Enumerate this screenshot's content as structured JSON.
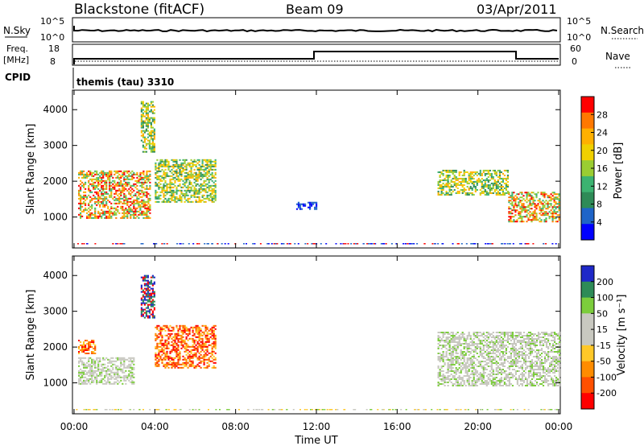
{
  "header": {
    "station": "Blackstone (fitACF)",
    "beam": "Beam 09",
    "date": "03/Apr/2011"
  },
  "params": {
    "nsky_label": "N.Sky",
    "nsearch_label": "N.Search",
    "freq_label_line1": "Freq.",
    "freq_label_line2": "[MHz]",
    "nave_label": "Nave",
    "cpid_label": "CPID",
    "nsky_ticks": [
      "10^5",
      "10^0"
    ],
    "nsearch_ticks": [
      "10^5",
      "10^0"
    ],
    "freq_ticks": [
      "18",
      "8"
    ],
    "nave_ticks": [
      "60",
      "0"
    ],
    "cpid_text": "themis (tau) 3310"
  },
  "chart_data": [
    {
      "type": "heatmap",
      "panel": "power",
      "ylabel": "Slant Range [km]",
      "xlabel": "",
      "x_tick_labels": [
        "00:00",
        "04:00",
        "08:00",
        "12:00",
        "16:00",
        "20:00",
        "00:00"
      ],
      "x_range_hours": [
        0,
        24
      ],
      "ylim": [
        180,
        4500
      ],
      "y_ticks": [
        1000,
        2000,
        3000,
        4000
      ],
      "colorbar": {
        "label": "Power [dB]",
        "ticks": [
          "28",
          "24",
          "20",
          "16",
          "12",
          "8",
          "4"
        ],
        "colors": [
          "#ff0000",
          "#ff7800",
          "#ffb000",
          "#f0d000",
          "#9acd32",
          "#3cb371",
          "#2e8b57",
          "#1e64c8",
          "#0000ff"
        ]
      },
      "echo_regions": [
        {
          "t0": 0.2,
          "t1": 3.8,
          "r0": 950,
          "r1": 2300,
          "level": "high"
        },
        {
          "t0": 3.3,
          "t1": 4.0,
          "r0": 2800,
          "r1": 4200,
          "level": "mid"
        },
        {
          "t0": 4.0,
          "t1": 7.0,
          "r0": 1400,
          "r1": 2600,
          "level": "mid"
        },
        {
          "t0": 11.0,
          "t1": 12.0,
          "r0": 1200,
          "r1": 1400,
          "level": "low"
        },
        {
          "t0": 18.0,
          "t1": 21.5,
          "r0": 1600,
          "r1": 2300,
          "level": "mid"
        },
        {
          "t0": 21.5,
          "t1": 24.0,
          "r0": 850,
          "r1": 1700,
          "level": "high"
        }
      ]
    },
    {
      "type": "heatmap",
      "panel": "velocity",
      "ylabel": "Slant Range [km]",
      "xlabel": "Time UT",
      "x_tick_labels": [
        "00:00",
        "04:00",
        "08:00",
        "12:00",
        "16:00",
        "20:00",
        "00:00"
      ],
      "x_range_hours": [
        0,
        24
      ],
      "ylim": [
        180,
        4500
      ],
      "y_ticks": [
        1000,
        2000,
        3000,
        4000
      ],
      "colorbar": {
        "label": "Velocity [m s⁻¹]",
        "ticks": [
          "200",
          "100",
          "50",
          "15",
          "-15",
          "-50",
          "-100",
          "-200"
        ],
        "colors": [
          "#1e28c8",
          "#2e8b57",
          "#7ccd3c",
          "#c8c8c0",
          "#c8c8c0",
          "#ffc828",
          "#ff8c00",
          "#ff5000",
          "#ff0000"
        ]
      },
      "echo_regions": [
        {
          "t0": 0.2,
          "t1": 3.0,
          "r0": 950,
          "r1": 1700,
          "level": "ground"
        },
        {
          "t0": 0.2,
          "t1": 1.0,
          "r0": 1800,
          "r1": 2200,
          "level": "neg"
        },
        {
          "t0": 3.3,
          "t1": 4.0,
          "r0": 2800,
          "r1": 4000,
          "level": "pos"
        },
        {
          "t0": 4.0,
          "t1": 7.0,
          "r0": 1400,
          "r1": 2600,
          "level": "neg"
        },
        {
          "t0": 18.0,
          "t1": 24.0,
          "r0": 900,
          "r1": 2400,
          "level": "ground"
        }
      ]
    }
  ]
}
